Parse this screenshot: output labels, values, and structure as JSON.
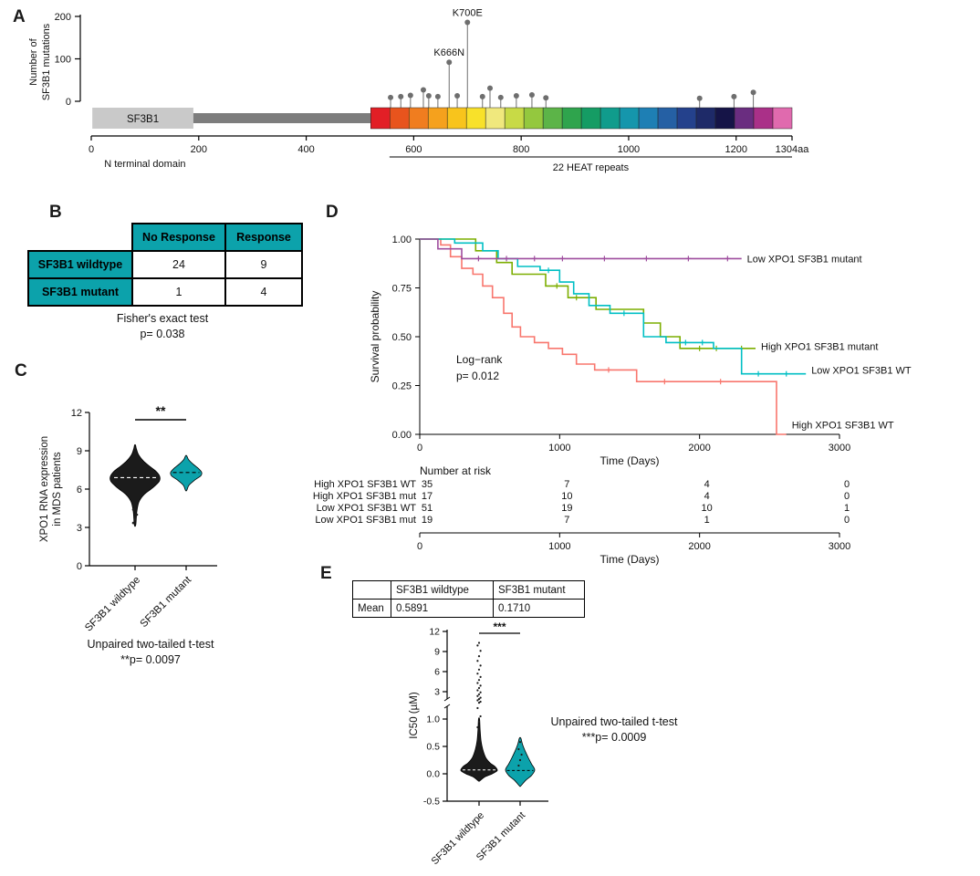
{
  "chart_data": [
    {
      "panel": "A",
      "type": "lollipop",
      "ylabel_line1": "Number of",
      "ylabel_line2": "SF3B1 mutations",
      "yticks": [
        0,
        100,
        200
      ],
      "ymax": 200,
      "protein_length": 1304,
      "xticks": [
        {
          "v": 0,
          "t": "0"
        },
        {
          "v": 200,
          "t": "200"
        },
        {
          "v": 400,
          "t": "400"
        },
        {
          "v": 600,
          "t": "600"
        },
        {
          "v": 800,
          "t": "800"
        },
        {
          "v": 1000,
          "t": "1000"
        },
        {
          "v": 1200,
          "t": "1200"
        },
        {
          "v": 1304,
          "t": "1304aa"
        }
      ],
      "n_terminal": {
        "label": "SF3B1",
        "caption": "N terminal domain",
        "start": 2,
        "end": 190,
        "color": "#c9c9c9"
      },
      "linker": {
        "start": 190,
        "end": 520,
        "color": "#7d7d7d"
      },
      "heat": {
        "start": 520,
        "end": 1304,
        "caption": "22 HEAT repeats",
        "colors": [
          "#e21f26",
          "#e8541d",
          "#f07d1f",
          "#f5a11d",
          "#f8c41c",
          "#f8e12a",
          "#f0e87d",
          "#c8da46",
          "#94c83e",
          "#5cb448",
          "#2fa44d",
          "#159c64",
          "#109c8c",
          "#1596ac",
          "#1e7fb4",
          "#2560a4",
          "#24418c",
          "#1e2a68",
          "#151447",
          "#6a2d80",
          "#aa3088",
          "#e06aae"
        ]
      },
      "lollipop_color": "#6e6e6e",
      "mutations": [
        {
          "pos": 557,
          "count": 9
        },
        {
          "pos": 576,
          "count": 11
        },
        {
          "pos": 594,
          "count": 14
        },
        {
          "pos": 618,
          "count": 27
        },
        {
          "pos": 628,
          "count": 13
        },
        {
          "pos": 645,
          "count": 11
        },
        {
          "pos": 666,
          "count": 92,
          "mutlabel": "K666N"
        },
        {
          "pos": 681,
          "count": 13
        },
        {
          "pos": 700,
          "count": 186,
          "mutlabel": "K700E"
        },
        {
          "pos": 728,
          "count": 11
        },
        {
          "pos": 742,
          "count": 31
        },
        {
          "pos": 762,
          "count": 9
        },
        {
          "pos": 791,
          "count": 13
        },
        {
          "pos": 820,
          "count": 15
        },
        {
          "pos": 846,
          "count": 8
        },
        {
          "pos": 1132,
          "count": 7
        },
        {
          "pos": 1196,
          "count": 11
        },
        {
          "pos": 1232,
          "count": 21
        }
      ]
    },
    {
      "panel": "B",
      "type": "table",
      "header_color": "#0ca2ab",
      "col_headers": [
        "No Response",
        "Response"
      ],
      "rows": [
        {
          "name": "SF3B1 wildtype",
          "values": [
            "24",
            "9"
          ]
        },
        {
          "name": "SF3B1 mutant",
          "values": [
            "1",
            "4"
          ]
        }
      ],
      "caption_line1": "Fisher's exact test",
      "caption_line2": "p= 0.038"
    },
    {
      "panel": "C",
      "type": "violin",
      "ylabel_line1": "XPO1 RNA expression",
      "ylabel_line2": "in MDS patients",
      "yticks": [
        0,
        3,
        6,
        9,
        12
      ],
      "ylim": [
        0,
        12
      ],
      "significance": "**",
      "groups": [
        {
          "name": "SF3B1 wildtype",
          "color": "#1b1b1b",
          "median": 6.9,
          "profile": [
            [
              3.2,
              0.03
            ],
            [
              4.2,
              0.07
            ],
            [
              5.0,
              0.16
            ],
            [
              5.6,
              0.38
            ],
            [
              6.1,
              0.72
            ],
            [
              6.6,
              0.98
            ],
            [
              7.0,
              1.0
            ],
            [
              7.4,
              0.85
            ],
            [
              7.8,
              0.58
            ],
            [
              8.2,
              0.34
            ],
            [
              8.7,
              0.14
            ],
            [
              9.2,
              0.05
            ],
            [
              9.45,
              0.02
            ]
          ],
          "dots": [
            3.35,
            3.65,
            4.0,
            4.4
          ]
        },
        {
          "name": "SF3B1 mutant",
          "color": "#0ca2ab",
          "median": 7.3,
          "profile": [
            [
              5.9,
              0.04
            ],
            [
              6.3,
              0.18
            ],
            [
              6.7,
              0.55
            ],
            [
              7.05,
              0.95
            ],
            [
              7.3,
              1.0
            ],
            [
              7.6,
              0.8
            ],
            [
              7.95,
              0.45
            ],
            [
              8.3,
              0.16
            ],
            [
              8.6,
              0.04
            ]
          ],
          "dots": []
        }
      ],
      "caption_line1": "Unpaired two-tailed t-test",
      "caption_line2": "**p= 0.0097"
    },
    {
      "panel": "D",
      "type": "km",
      "ylabel": "Survival probability",
      "xlabel": "Time (Days)",
      "yticks": [
        {
          "v": 1.0,
          "t": "1.00"
        },
        {
          "v": 0.75,
          "t": "0.75"
        },
        {
          "v": 0.5,
          "t": "0.50"
        },
        {
          "v": 0.25,
          "t": "0.25"
        },
        {
          "v": 0.0,
          "t": "0.00"
        }
      ],
      "xticks": [
        0,
        1000,
        2000,
        3000
      ],
      "xmax": 3000,
      "annotation_line1": "Log−rank",
      "annotation_line2": "p= 0.012",
      "curves": [
        {
          "name": "High XPO1 SF3B1 WT",
          "color": "#f8766d",
          "label_y": 0.05,
          "steps": [
            [
              0,
              1.0
            ],
            [
              150,
              1.0
            ],
            [
              150,
              0.97
            ],
            [
              220,
              0.97
            ],
            [
              220,
              0.91
            ],
            [
              300,
              0.91
            ],
            [
              300,
              0.85
            ],
            [
              380,
              0.85
            ],
            [
              380,
              0.82
            ],
            [
              450,
              0.82
            ],
            [
              450,
              0.76
            ],
            [
              520,
              0.76
            ],
            [
              520,
              0.7
            ],
            [
              600,
              0.7
            ],
            [
              600,
              0.62
            ],
            [
              660,
              0.62
            ],
            [
              660,
              0.55
            ],
            [
              720,
              0.55
            ],
            [
              720,
              0.5
            ],
            [
              820,
              0.5
            ],
            [
              820,
              0.47
            ],
            [
              920,
              0.47
            ],
            [
              920,
              0.44
            ],
            [
              1020,
              0.44
            ],
            [
              1020,
              0.41
            ],
            [
              1120,
              0.41
            ],
            [
              1120,
              0.36
            ],
            [
              1250,
              0.36
            ],
            [
              1250,
              0.33
            ],
            [
              1550,
              0.33
            ],
            [
              1550,
              0.27
            ],
            [
              2550,
              0.27
            ],
            [
              2550,
              0.0
            ],
            [
              2620,
              0.0
            ]
          ],
          "censors": [
            1350,
            1750,
            2150
          ]
        },
        {
          "name": "High XPO1 SF3B1 mut",
          "label": "High XPO1 SF3B1 mutant",
          "color": "#7cae00",
          "label_y": 0.45,
          "steps": [
            [
              0,
              1.0
            ],
            [
              400,
              1.0
            ],
            [
              400,
              0.94
            ],
            [
              550,
              0.94
            ],
            [
              550,
              0.88
            ],
            [
              660,
              0.88
            ],
            [
              660,
              0.82
            ],
            [
              900,
              0.82
            ],
            [
              900,
              0.76
            ],
            [
              1060,
              0.76
            ],
            [
              1060,
              0.7
            ],
            [
              1260,
              0.7
            ],
            [
              1260,
              0.64
            ],
            [
              1600,
              0.64
            ],
            [
              1600,
              0.57
            ],
            [
              1720,
              0.57
            ],
            [
              1720,
              0.5
            ],
            [
              1860,
              0.5
            ],
            [
              1860,
              0.44
            ],
            [
              2400,
              0.44
            ]
          ],
          "censors": [
            980,
            1120,
            2000,
            2120,
            2300
          ]
        },
        {
          "name": "Low XPO1 SF3B1 WT",
          "color": "#00bfc4",
          "label_y": 0.33,
          "steps": [
            [
              0,
              1.0
            ],
            [
              250,
              1.0
            ],
            [
              250,
              0.98
            ],
            [
              450,
              0.98
            ],
            [
              450,
              0.94
            ],
            [
              560,
              0.94
            ],
            [
              560,
              0.9
            ],
            [
              700,
              0.9
            ],
            [
              700,
              0.86
            ],
            [
              860,
              0.86
            ],
            [
              860,
              0.84
            ],
            [
              1000,
              0.84
            ],
            [
              1000,
              0.78
            ],
            [
              1100,
              0.78
            ],
            [
              1100,
              0.72
            ],
            [
              1210,
              0.72
            ],
            [
              1210,
              0.66
            ],
            [
              1360,
              0.66
            ],
            [
              1360,
              0.62
            ],
            [
              1600,
              0.62
            ],
            [
              1600,
              0.5
            ],
            [
              1760,
              0.5
            ],
            [
              1760,
              0.47
            ],
            [
              2100,
              0.47
            ],
            [
              2100,
              0.44
            ],
            [
              2300,
              0.44
            ],
            [
              2300,
              0.31
            ],
            [
              2760,
              0.31
            ]
          ],
          "censors": [
            920,
            1460,
            1900,
            2020,
            2420,
            2620
          ]
        },
        {
          "name": "Low XPO1 SF3B1 mut",
          "label": "Low XPO1 SF3B1 mutant",
          "color": "#9e4d9e",
          "label_y": 0.9,
          "steps": [
            [
              0,
              1.0
            ],
            [
              130,
              1.0
            ],
            [
              130,
              0.95
            ],
            [
              300,
              0.95
            ],
            [
              300,
              0.9
            ],
            [
              2300,
              0.9
            ]
          ],
          "censors": [
            420,
            620,
            820,
            1020,
            1320,
            1620,
            1920,
            2200
          ]
        }
      ],
      "risk_table": {
        "title": "Number at risk",
        "xlabel": "Time (Days)",
        "xticks": [
          0,
          1000,
          2000,
          3000
        ],
        "rows": [
          {
            "name": "High XPO1 SF3B1 WT",
            "color": "#f8766d",
            "values": [
              35,
              7,
              4,
              0
            ]
          },
          {
            "name": "High XPO1 SF3B1 mut",
            "color": "#7cae00",
            "values": [
              17,
              10,
              4,
              0
            ]
          },
          {
            "name": "Low XPO1 SF3B1 WT",
            "color": "#00bfc4",
            "values": [
              51,
              19,
              10,
              1
            ]
          },
          {
            "name": "Low XPO1 SF3B1 mut",
            "color": "#9e4d9e",
            "values": [
              19,
              7,
              1,
              0
            ]
          }
        ]
      }
    },
    {
      "panel": "E",
      "type": "violin-break",
      "table": {
        "col_headers": [
          "SF3B1 wildtype",
          "SF3B1 mutant"
        ],
        "row_name": "Mean",
        "values": [
          "0.5891",
          "0.1710"
        ]
      },
      "ylabel": "IC50 (µM)",
      "yticks_upper": [
        {
          "v": 3,
          "t": "3"
        },
        {
          "v": 6,
          "t": "6"
        },
        {
          "v": 9,
          "t": "9"
        },
        {
          "v": 12,
          "t": "12"
        }
      ],
      "yticks_lower": [
        {
          "v": -0.5,
          "t": "-0.5"
        },
        {
          "v": 0,
          "t": "0.0"
        },
        {
          "v": 0.5,
          "t": "0.5"
        },
        {
          "v": 1,
          "t": "1.0"
        }
      ],
      "significance": "***",
      "groups": [
        {
          "name": "SF3B1 wildtype",
          "color": "#1b1b1b",
          "median": 0.07,
          "profile": [
            [
              -0.13,
              0.04
            ],
            [
              -0.06,
              0.3
            ],
            [
              0.0,
              0.72
            ],
            [
              0.06,
              1.0
            ],
            [
              0.13,
              0.88
            ],
            [
              0.2,
              0.6
            ],
            [
              0.3,
              0.36
            ],
            [
              0.45,
              0.2
            ],
            [
              0.6,
              0.11
            ],
            [
              0.8,
              0.06
            ],
            [
              1.0,
              0.03
            ]
          ],
          "dots": [
            0.85,
            0.95,
            1.05,
            1.2,
            1.35,
            1.5,
            1.7,
            1.9,
            2.1,
            2.35,
            2.6,
            2.9,
            3.2,
            3.55,
            3.9,
            4.3,
            4.75,
            5.2,
            5.7,
            6.3,
            6.9,
            7.6,
            8.3,
            9.1,
            9.9,
            10.3
          ]
        },
        {
          "name": "SF3B1 mutant",
          "color": "#0ca2ab",
          "median": 0.06,
          "profile": [
            [
              -0.22,
              0.05
            ],
            [
              -0.12,
              0.38
            ],
            [
              -0.03,
              0.78
            ],
            [
              0.07,
              1.0
            ],
            [
              0.18,
              0.78
            ],
            [
              0.3,
              0.55
            ],
            [
              0.42,
              0.34
            ],
            [
              0.54,
              0.16
            ],
            [
              0.65,
              0.05
            ]
          ],
          "dots": [
            0.15,
            0.25,
            0.35,
            0.45,
            0.58
          ]
        }
      ],
      "note_line1": "Unpaired two-tailed t-test",
      "note_line2": "***p= 0.0009"
    }
  ]
}
